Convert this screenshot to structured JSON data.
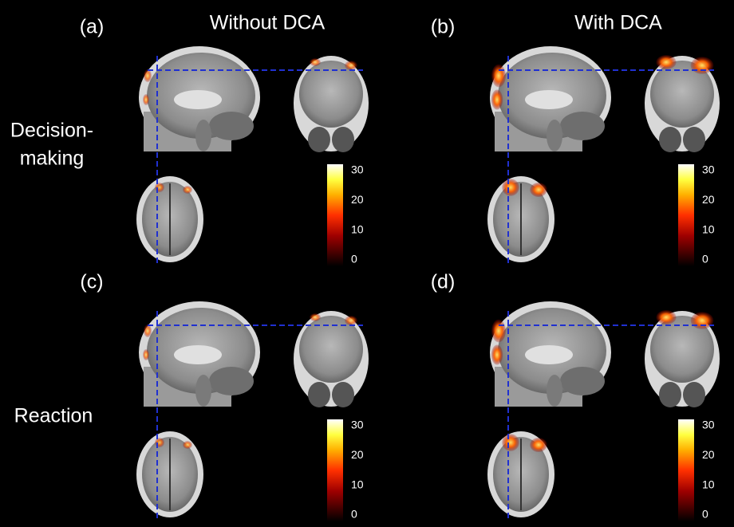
{
  "column_titles": [
    "Without DCA",
    "With DCA"
  ],
  "row_labels": [
    [
      "Decision-",
      "making"
    ],
    [
      "Reaction"
    ]
  ],
  "panels": [
    {
      "label": "(a)",
      "colorbar_ticks": [
        0,
        10,
        20,
        30
      ]
    },
    {
      "label": "(b)",
      "colorbar_ticks": [
        0,
        10,
        20,
        30
      ]
    },
    {
      "label": "(c)",
      "colorbar_ticks": [
        0,
        10,
        20,
        30
      ]
    },
    {
      "label": "(d)",
      "colorbar_ticks": [
        0,
        10,
        20,
        30
      ]
    }
  ]
}
